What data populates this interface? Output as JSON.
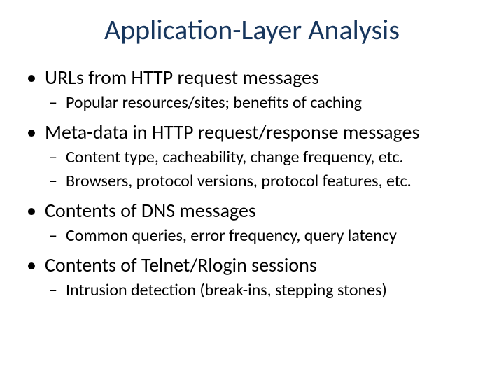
{
  "slide": {
    "title": "Application-Layer Analysis",
    "title_color": "#17365d",
    "title_fontsize": 40,
    "body_color": "#000000",
    "l1_fontsize": 28,
    "l2_fontsize": 24,
    "background_color": "#ffffff",
    "bullets": [
      {
        "text": "URLs from HTTP request messages",
        "sub": [
          "Popular resources/sites; benefits of caching"
        ]
      },
      {
        "text": "Meta-data in HTTP request/response messages",
        "sub": [
          "Content type, cacheability, change frequency, etc.",
          "Browsers, protocol versions, protocol features, etc."
        ]
      },
      {
        "text": "Contents of DNS messages",
        "sub": [
          "Common queries, error frequency, query latency"
        ]
      },
      {
        "text": "Contents of Telnet/Rlogin sessions",
        "sub": [
          "Intrusion detection (break-ins, stepping stones)"
        ]
      }
    ]
  }
}
